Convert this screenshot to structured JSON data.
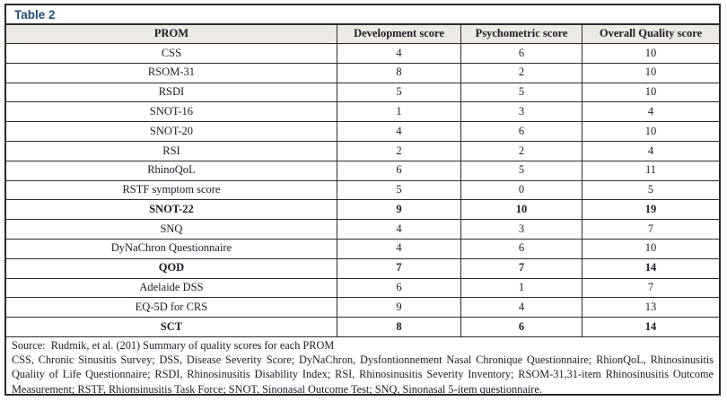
{
  "title": "Table 2",
  "table": {
    "columns": [
      "PROM",
      "Development score",
      "Psychometric score",
      "Overall Quality score"
    ],
    "rows": [
      {
        "prom": "CSS",
        "dev": "4",
        "psych": "6",
        "overall": "10",
        "bold": false
      },
      {
        "prom": "RSOM-31",
        "dev": "8",
        "psych": "2",
        "overall": "10",
        "bold": false
      },
      {
        "prom": "RSDI",
        "dev": "5",
        "psych": "5",
        "overall": "10",
        "bold": false
      },
      {
        "prom": "SNOT-16",
        "dev": "1",
        "psych": "3",
        "overall": "4",
        "bold": false
      },
      {
        "prom": "SNOT-20",
        "dev": "4",
        "psych": "6",
        "overall": "10",
        "bold": false
      },
      {
        "prom": "RSI",
        "dev": "2",
        "psych": "2",
        "overall": "4",
        "bold": false
      },
      {
        "prom": "RhinoQoL",
        "dev": "6",
        "psych": "5",
        "overall": "11",
        "bold": false
      },
      {
        "prom": "RSTF symptom score",
        "dev": "5",
        "psych": "0",
        "overall": "5",
        "bold": false
      },
      {
        "prom": "SNOT-22",
        "dev": "9",
        "psych": "10",
        "overall": "19",
        "bold": true
      },
      {
        "prom": "SNQ",
        "dev": "4",
        "psych": "3",
        "overall": "7",
        "bold": false
      },
      {
        "prom": "DyNaChron Questionnaire",
        "dev": "4",
        "psych": "6",
        "overall": "10",
        "bold": false
      },
      {
        "prom": "QOD",
        "dev": "7",
        "psych": "7",
        "overall": "14",
        "bold": true
      },
      {
        "prom": "Adelaide DSS",
        "dev": "6",
        "psych": "1",
        "overall": "7",
        "bold": false
      },
      {
        "prom": "EQ-5D for CRS",
        "dev": "9",
        "psych": "4",
        "overall": "13",
        "bold": false
      },
      {
        "prom": "SCT",
        "dev": "8",
        "psych": "6",
        "overall": "14",
        "bold": true
      }
    ]
  },
  "footer": {
    "source": "Source:  Rudmik, et al. (201) Summary of quality scores for each PROM",
    "abbreviations": "CSS, Chronic Sinusitis Survey; DSS, Disease Severity Score; DyNaChron, Dysfontionnement Nasal Chronique Questionnaire; RhionQoL, Rhinosinusitis Quality of Life Questionnaire; RSDI, Rhinosinusitis Disability Index; RSI, Rhinosinusitis Severity Inventory; RSOM-31,31-item Rhinosinusitis Outcome Measurement; RSTF, Rhionsinusitis Task Force; SNOT, Sinonasal Outcome Test; SNQ, Sinonasal 5-item questionnaire."
  },
  "colors": {
    "title_blue": "#1e4e7e",
    "header_bg": "#edeae6",
    "border": "#2b2b2b",
    "text": "#1c1c26"
  }
}
